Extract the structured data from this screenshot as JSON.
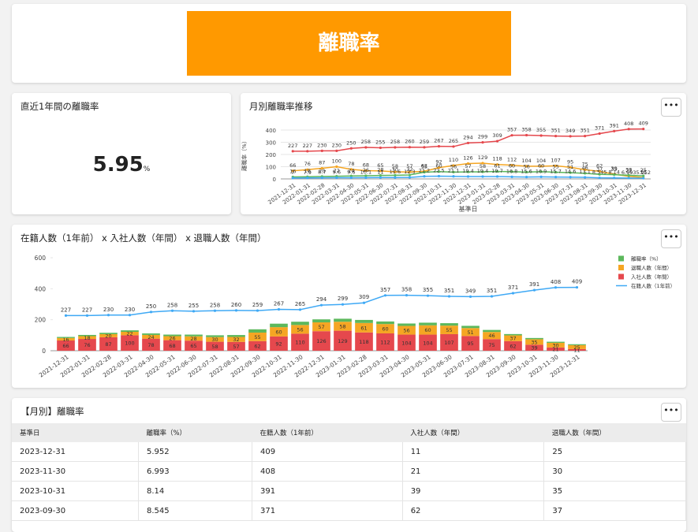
{
  "header": {
    "title": "離職率"
  },
  "kpi": {
    "title": "直近1年間の離職率",
    "value": "5.95",
    "unit": "%"
  },
  "chart_data": [
    {
      "type": "line",
      "title": "月別離職率推移",
      "y_label": "離職率（%）",
      "x_label": "基準日",
      "categories": [
        "2021-12-31",
        "2022-01-31",
        "2022-02-28",
        "2022-03-31",
        "2022-04-30",
        "2022-05-31",
        "2022-06-30",
        "2022-07-31",
        "2022-08-31",
        "2022-09-30",
        "2022-10-31",
        "2022-11-30",
        "2022-12-31",
        "2023-01-31",
        "2023-02-28",
        "2023-03-31",
        "2023-04-30",
        "2023-05-31",
        "2023-06-30",
        "2023-07-31",
        "2023-08-31",
        "2023-09-30",
        "2023-10-31",
        "2023-11-30",
        "2023-12-31"
      ],
      "ylim": [
        0,
        400
      ],
      "yticks": [
        0,
        100,
        200,
        300,
        400
      ],
      "grid": true,
      "series": [
        {
          "color": "#e5484d",
          "values": [
            227,
            227,
            230,
            230,
            250,
            258,
            255,
            258,
            260,
            259,
            267,
            265,
            294,
            299,
            309,
            357,
            358,
            355,
            351,
            349,
            351,
            371,
            391,
            408,
            409
          ]
        },
        {
          "color": "#f5a623",
          "values": [
            66,
            76,
            87,
            100,
            78,
            68,
            65,
            58,
            57,
            62,
            92,
            110,
            126,
            129,
            118,
            112,
            104,
            104,
            107,
            95,
            75,
            62,
            39,
            21,
            11
          ]
        },
        {
          "color": "#5cb85c",
          "values": [
            16,
            18,
            20,
            22,
            24,
            26,
            28,
            30,
            32,
            55,
            60,
            56,
            57,
            58,
            61,
            60,
            56,
            60,
            55,
            51,
            46,
            37,
            35,
            30,
            25
          ]
        },
        {
          "color": "#3fa9f5",
          "values": [
            7.0,
            7.9,
            8.7,
            9.6,
            9.6,
            10.1,
            11.0,
            11.6,
            12.3,
            21.2,
            22.5,
            21.1,
            19.4,
            19.4,
            19.7,
            16.8,
            15.6,
            16.9,
            15.7,
            14.6,
            13.1,
            8.545,
            8.14,
            6.993,
            5.952
          ]
        }
      ]
    },
    {
      "type": "combo",
      "title": "在籍人数（1年前） x 入社人数（年間） x 退職人数（年間）",
      "categories": [
        "2021-12-31",
        "2022-01-31",
        "2022-02-28",
        "2022-03-31",
        "2022-04-30",
        "2022-05-31",
        "2022-06-30",
        "2022-07-31",
        "2022-08-31",
        "2022-09-30",
        "2022-10-31",
        "2022-11-30",
        "2022-12-31",
        "2023-01-31",
        "2023-02-28",
        "2023-03-31",
        "2023-04-30",
        "2023-05-31",
        "2023-06-30",
        "2023-07-31",
        "2023-08-31",
        "2023-09-30",
        "2023-10-31",
        "2023-11-30",
        "2023-12-31"
      ],
      "ylim": [
        0,
        600
      ],
      "yticks": [
        0,
        200,
        400,
        600
      ],
      "series": [
        {
          "name": "離職率（%）",
          "type": "bar",
          "color": "#5cb85c",
          "values": [
            7.0,
            7.9,
            8.7,
            9.6,
            9.6,
            10.1,
            11.0,
            11.6,
            12.3,
            21.2,
            22.5,
            21.1,
            19.4,
            19.4,
            19.7,
            16.8,
            15.6,
            16.9,
            15.7,
            14.6,
            13.1,
            8.545,
            8.14,
            6.993,
            5.952
          ]
        },
        {
          "name": "退職人数（年間）",
          "type": "bar",
          "color": "#f5a623",
          "labels": true,
          "values": [
            16,
            18,
            20,
            22,
            24,
            26,
            28,
            30,
            32,
            55,
            60,
            56,
            57,
            58,
            61,
            60,
            56,
            60,
            55,
            51,
            46,
            37,
            35,
            30,
            25
          ]
        },
        {
          "name": "入社人数（年間）",
          "type": "bar",
          "color": "#e5484d",
          "labels": true,
          "values": [
            66,
            76,
            87,
            100,
            78,
            68,
            65,
            58,
            57,
            62,
            92,
            110,
            126,
            129,
            118,
            112,
            104,
            104,
            107,
            95,
            75,
            62,
            39,
            21,
            11
          ]
        },
        {
          "name": "在籍人数（1年前）",
          "type": "line",
          "color": "#3fa9f5",
          "labels": true,
          "values": [
            227,
            227,
            230,
            230,
            250,
            258,
            255,
            258,
            260,
            259,
            267,
            265,
            294,
            299,
            309,
            357,
            358,
            355,
            351,
            349,
            351,
            371,
            391,
            408,
            409
          ]
        }
      ]
    }
  ],
  "table": {
    "title": "【月別】離職率",
    "columns": [
      "基準日",
      "離職率（%）",
      "在籍人数（1年前）",
      "入社人数（年間）",
      "退職人数（年間）"
    ],
    "rows": [
      [
        "2023-12-31",
        "5.952",
        "409",
        "11",
        "25"
      ],
      [
        "2023-11-30",
        "6.993",
        "408",
        "21",
        "30"
      ],
      [
        "2023-10-31",
        "8.14",
        "391",
        "39",
        "35"
      ],
      [
        "2023-09-30",
        "8.545",
        "371",
        "62",
        "37"
      ]
    ]
  }
}
